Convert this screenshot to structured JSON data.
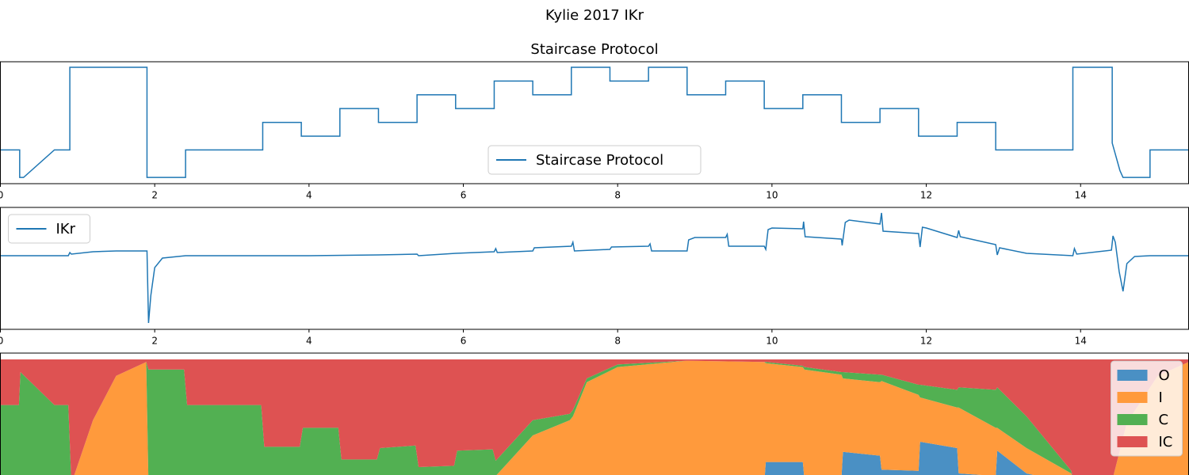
{
  "title": "Kylie 2017 IKr",
  "chart_data": [
    {
      "type": "line",
      "title": "Staircase Protocol",
      "x": [
        0,
        0.25,
        0.25,
        0.3,
        0.7,
        0.9,
        0.9,
        1.9,
        1.9,
        2.4,
        2.4,
        3.4,
        3.4,
        3.9,
        3.9,
        4.4,
        4.4,
        4.9,
        4.9,
        5.4,
        5.4,
        5.9,
        5.9,
        6.4,
        6.4,
        6.9,
        6.9,
        7.4,
        7.4,
        7.9,
        7.9,
        8.4,
        8.4,
        8.9,
        8.9,
        9.4,
        9.4,
        9.9,
        9.9,
        10.4,
        10.4,
        10.9,
        10.9,
        11.4,
        11.4,
        11.9,
        11.9,
        12.4,
        12.4,
        12.9,
        12.9,
        13.9,
        13.9,
        14.41,
        14.41,
        14.51,
        14.55,
        14.9,
        14.9,
        15.4
      ],
      "series": [
        {
          "name": "Staircase Protocol",
          "color": "#1f77b4",
          "values": [
            -80,
            -80,
            -120,
            -120,
            -80,
            -80,
            40,
            40,
            -120,
            -120,
            -80,
            -80,
            -40,
            -40,
            -60,
            -60,
            -20,
            -20,
            -40,
            -40,
            0,
            0,
            -20,
            -20,
            20,
            20,
            0,
            0,
            40,
            40,
            20,
            20,
            40,
            40,
            0,
            0,
            20,
            20,
            -20,
            -20,
            0,
            0,
            -40,
            -40,
            -20,
            -20,
            -60,
            -60,
            -40,
            -40,
            -80,
            -80,
            40,
            40,
            -70,
            -110,
            -120,
            -120,
            -80,
            -80
          ]
        }
      ],
      "xlim": [
        0,
        15.4
      ],
      "xticks": [
        0,
        2,
        4,
        6,
        8,
        10,
        12,
        14
      ],
      "ylim": [
        -129,
        48
      ],
      "legend": "lower center"
    },
    {
      "type": "line",
      "x": [
        0,
        0.88,
        0.9,
        0.92,
        1.2,
        1.5,
        1.9,
        1.92,
        1.95,
        2.0,
        2.1,
        2.4,
        4.0,
        4.9,
        5.4,
        5.42,
        5.9,
        6.4,
        6.42,
        6.44,
        6.9,
        6.92,
        7.4,
        7.42,
        7.44,
        7.9,
        7.92,
        8.4,
        8.42,
        8.44,
        8.9,
        8.92,
        9.0,
        9.4,
        9.42,
        9.44,
        9.9,
        9.92,
        9.95,
        10.0,
        10.4,
        10.41,
        10.43,
        10.9,
        10.91,
        10.95,
        11.0,
        11.4,
        11.42,
        11.44,
        11.9,
        11.92,
        11.95,
        12.0,
        12.4,
        12.42,
        12.44,
        12.9,
        12.92,
        12.95,
        13.3,
        13.9,
        13.92,
        13.95,
        14.4,
        14.42,
        14.45,
        14.5,
        14.55,
        14.6,
        14.7,
        14.9,
        15.4
      ],
      "series": [
        {
          "name": "IKr",
          "color": "#1f77b4",
          "values": [
            0,
            0,
            0.04,
            0.02,
            0.05,
            0.06,
            0.06,
            -0.85,
            -0.5,
            -0.15,
            -0.03,
            0,
            0,
            0.01,
            0.02,
            0,
            0.03,
            0.05,
            0.09,
            0.04,
            0.06,
            0.1,
            0.12,
            0.17,
            0.06,
            0.08,
            0.11,
            0.12,
            0.15,
            0.06,
            0.06,
            0.2,
            0.23,
            0.23,
            0.27,
            0.12,
            0.12,
            0.08,
            0.33,
            0.35,
            0.34,
            0.43,
            0.24,
            0.21,
            0.13,
            0.42,
            0.45,
            0.4,
            0.54,
            0.31,
            0.28,
            0.11,
            0.36,
            0.35,
            0.23,
            0.32,
            0.24,
            0.14,
            0.01,
            0.1,
            0.03,
            0,
            0.09,
            0.02,
            0.07,
            0.25,
            0.17,
            -0.2,
            -0.45,
            -0.1,
            -0.01,
            0,
            0
          ]
        }
      ],
      "xlim": [
        0,
        15.4
      ],
      "xticks": [
        0,
        2,
        4,
        6,
        8,
        10,
        12,
        14
      ],
      "ylim": [
        -0.93,
        0.61
      ],
      "legend": "upper left"
    },
    {
      "type": "stacked_area",
      "x": [
        0,
        0.24,
        0.26,
        0.7,
        0.88,
        0.92,
        1.2,
        1.5,
        1.89,
        1.92,
        2.0,
        2.38,
        2.42,
        3.38,
        3.42,
        3.88,
        3.92,
        4.38,
        4.42,
        4.88,
        4.92,
        5.38,
        5.42,
        5.88,
        5.92,
        6.38,
        6.42,
        6.9,
        7.38,
        7.42,
        7.6,
        8.0,
        8.9,
        9.9,
        9.92,
        10.4,
        10.42,
        10.9,
        10.92,
        11.4,
        11.42,
        11.9,
        11.92,
        12.4,
        12.42,
        12.9,
        12.92,
        13.3,
        13.88,
        13.92,
        14.4,
        14.6,
        15.0,
        15.4
      ],
      "series": [
        {
          "name": "O",
          "color": "#4a90c4",
          "values": [
            0,
            0,
            0,
            0,
            0,
            0,
            0,
            0,
            0,
            0,
            0,
            0,
            0,
            0,
            0,
            0,
            0,
            0,
            0,
            0,
            0,
            0,
            0,
            0,
            0,
            0,
            0,
            0,
            0,
            0,
            0,
            0.01,
            0.02,
            0.02,
            0.19,
            0.19,
            0.06,
            0.06,
            0.27,
            0.24,
            0.13,
            0.12,
            0.35,
            0.3,
            0.1,
            0.08,
            0.28,
            0.1,
            0.02,
            0,
            0,
            0,
            0,
            0
          ]
        },
        {
          "name": "I",
          "color": "#ff9a3c",
          "values": [
            0,
            0,
            0,
            0,
            0,
            0.02,
            0.52,
            0.87,
            0.98,
            0,
            0,
            0,
            0,
            0,
            0,
            0,
            0,
            0,
            0,
            0,
            0,
            0.02,
            0.02,
            0.02,
            0.02,
            0.03,
            0.08,
            0.4,
            0.52,
            0.55,
            0.82,
            0.93,
            0.97,
            0.96,
            0.78,
            0.75,
            0.86,
            0.82,
            0.58,
            0.58,
            0.7,
            0.6,
            0.35,
            0.32,
            0.52,
            0.38,
            0.18,
            0.2,
            0.08,
            0,
            0.02,
            0.5,
            0.87,
            0.98
          ]
        },
        {
          "name": "C",
          "color": "#52b052",
          "values": [
            0.64,
            0.64,
            0.9,
            0.64,
            0.64,
            0,
            0,
            0,
            0,
            0.92,
            0.92,
            0.92,
            0.64,
            0.64,
            0.31,
            0.31,
            0.46,
            0.46,
            0.21,
            0.21,
            0.3,
            0.3,
            0.13,
            0.14,
            0.26,
            0.26,
            0.12,
            0.12,
            0.05,
            0.05,
            0.03,
            0.02,
            0,
            0,
            0.01,
            0.01,
            0.02,
            0.02,
            0.05,
            0.06,
            0.05,
            0.08,
            0.1,
            0.14,
            0.16,
            0.3,
            0.32,
            0.25,
            0.02,
            0,
            0,
            0,
            0,
            0
          ]
        },
        {
          "name": "IC",
          "color": "#de5252",
          "values": [
            0.36,
            0.36,
            0.1,
            0.36,
            0.36,
            0.98,
            0.48,
            0.13,
            0.02,
            0.08,
            0.08,
            0.08,
            0.36,
            0.36,
            0.69,
            0.69,
            0.54,
            0.54,
            0.79,
            0.79,
            0.7,
            0.68,
            0.85,
            0.84,
            0.72,
            0.71,
            0.8,
            0.48,
            0.43,
            0.4,
            0.15,
            0.04,
            0.01,
            0.02,
            0.02,
            0.05,
            0.06,
            0.1,
            0.1,
            0.12,
            0.12,
            0.2,
            0.2,
            0.24,
            0.22,
            0.24,
            0.22,
            0.45,
            0.88,
            1,
            0.98,
            0.5,
            0.13,
            0.02
          ]
        }
      ],
      "xlim": [
        0,
        15.4
      ],
      "ylim": [
        -0.05,
        1.05
      ],
      "legend": "upper right"
    }
  ]
}
